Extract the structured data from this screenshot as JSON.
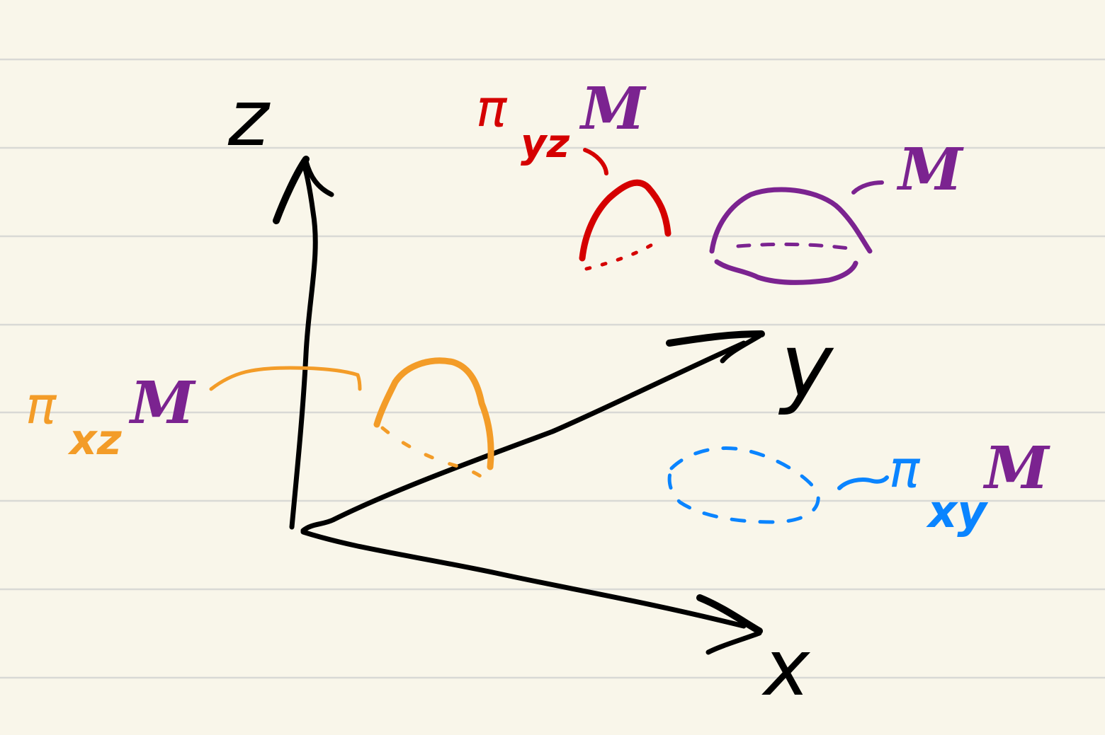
{
  "colors": {
    "paper": "#f9f6ea",
    "rule": "#d9d9d5",
    "axis": "#000000",
    "yz": "#d50000",
    "xz": "#f39c28",
    "xy": "#0a84ff",
    "manifold": "#7b2390"
  },
  "axes": {
    "z": "z",
    "y": "y",
    "x": "x"
  },
  "labels": {
    "pi": "π",
    "yz_sub": "yz",
    "xz_sub": "xz",
    "xy_sub": "xy",
    "manifold": "M"
  }
}
